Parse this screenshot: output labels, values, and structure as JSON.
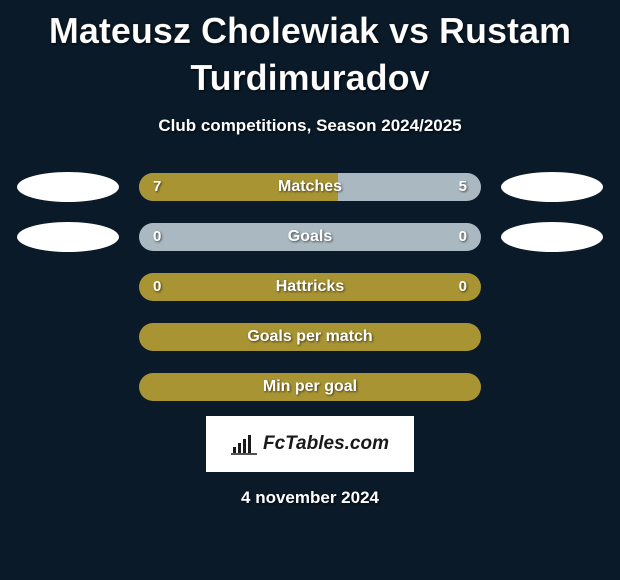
{
  "title": "Mateusz Cholewiak vs Rustam Turdimuradov",
  "subtitle": "Club competitions, Season 2024/2025",
  "date": "4 november 2024",
  "logo_text": "FcTables.com",
  "colors": {
    "background": "#0a1a28",
    "bar_olive": "#a99433",
    "bar_light": "#aab9c1",
    "ellipse_white": "#ffffff",
    "text_white": "#ffffff"
  },
  "rows": [
    {
      "label": "Matches",
      "left_value": "7",
      "right_value": "5",
      "left_pct": 58.3,
      "right_pct": 41.7,
      "left_color": "#a99433",
      "right_color": "#aab9c1",
      "show_ellipses": true,
      "ellipse_left_color": "#ffffff",
      "ellipse_right_color": "#ffffff"
    },
    {
      "label": "Goals",
      "left_value": "0",
      "right_value": "0",
      "left_pct": 0,
      "right_pct": 0,
      "left_color": "#a99433",
      "right_color": "#aab9c1",
      "base_color": "#aab9c1",
      "show_ellipses": true,
      "ellipse_left_color": "#ffffff",
      "ellipse_right_color": "#ffffff"
    },
    {
      "label": "Hattricks",
      "left_value": "0",
      "right_value": "0",
      "left_pct": 0,
      "right_pct": 0,
      "left_color": "#a99433",
      "right_color": "#a99433",
      "base_color": "#a99433",
      "show_ellipses": false
    },
    {
      "label": "Goals per match",
      "left_value": "",
      "right_value": "",
      "left_pct": 0,
      "right_pct": 0,
      "base_color": "#a99433",
      "show_ellipses": false
    },
    {
      "label": "Min per goal",
      "left_value": "",
      "right_value": "",
      "left_pct": 0,
      "right_pct": 0,
      "base_color": "#a99433",
      "show_ellipses": false
    }
  ]
}
